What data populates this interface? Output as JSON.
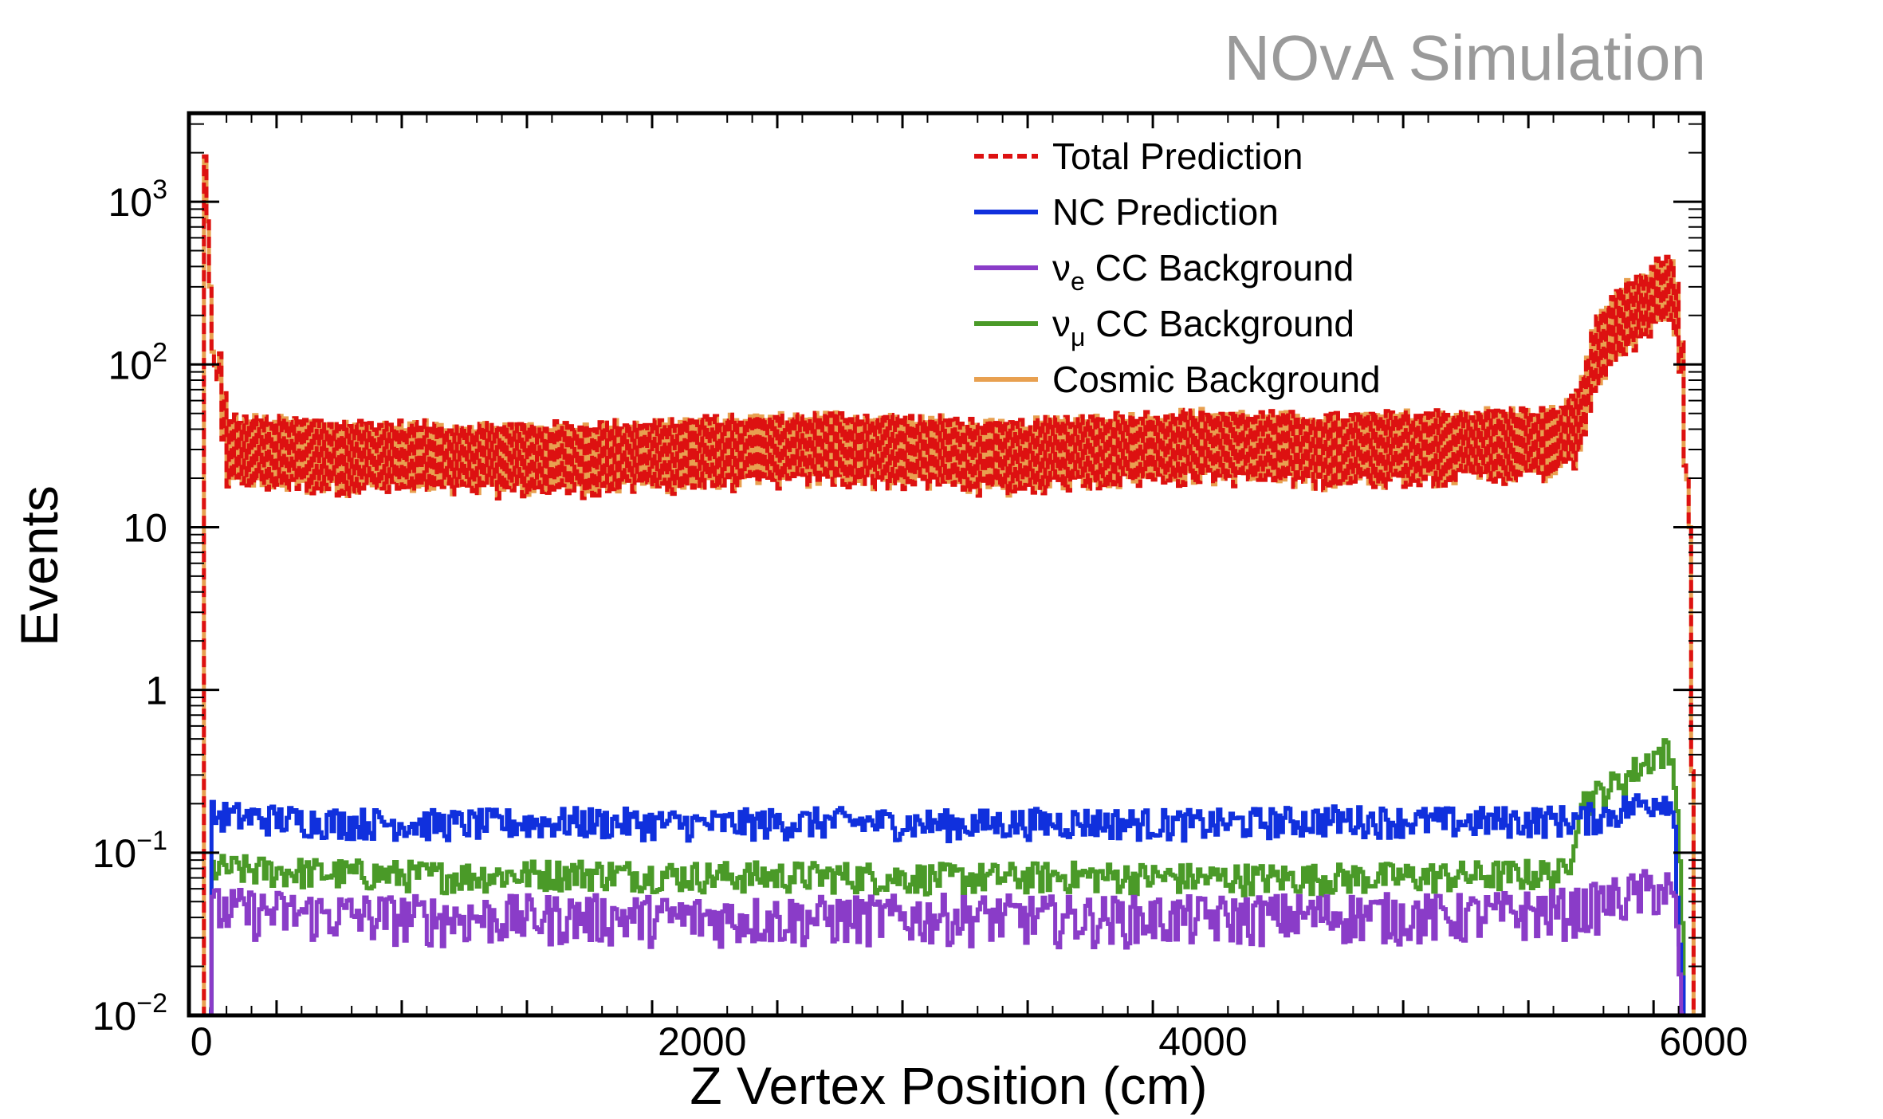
{
  "watermark": "NOvA Simulation",
  "chart_data": {
    "type": "line",
    "xlabel": "Z Vertex Position (cm)",
    "ylabel": "Events",
    "xlim": [
      -50,
      6000
    ],
    "ylim": [
      0.01,
      3500
    ],
    "yscale": "log",
    "grid": false,
    "legend_position": "top-center",
    "x_ticks": [
      {
        "value": 0,
        "label": "0"
      },
      {
        "value": 2000,
        "label": "2000"
      },
      {
        "value": 4000,
        "label": "4000"
      },
      {
        "value": 6000,
        "label": "6000"
      }
    ],
    "y_ticks": [
      {
        "value": 0.01,
        "base": "10",
        "exp": "−2"
      },
      {
        "value": 0.1,
        "base": "10",
        "exp": "−1"
      },
      {
        "value": 1,
        "base": "1",
        "exp": ""
      },
      {
        "value": 10,
        "base": "10",
        "exp": ""
      },
      {
        "value": 100,
        "base": "10",
        "exp": "2"
      },
      {
        "value": 1000,
        "base": "10",
        "exp": "3"
      }
    ],
    "series": [
      {
        "id": "cosmic",
        "name": "Cosmic Background",
        "color": "#e8a050",
        "dashed": false,
        "points": [
          [
            0,
            0.01
          ],
          [
            10,
            1900
          ],
          [
            40,
            120
          ],
          [
            80,
            55
          ],
          [
            100,
            28
          ],
          [
            500,
            26
          ],
          [
            1000,
            25
          ],
          [
            1500,
            25
          ],
          [
            2000,
            27
          ],
          [
            2500,
            29
          ],
          [
            3000,
            27
          ],
          [
            3200,
            25
          ],
          [
            3500,
            28
          ],
          [
            4000,
            30
          ],
          [
            4500,
            28
          ],
          [
            5000,
            30
          ],
          [
            5400,
            31
          ],
          [
            5500,
            40
          ],
          [
            5550,
            100
          ],
          [
            5650,
            170
          ],
          [
            5750,
            210
          ],
          [
            5820,
            260
          ],
          [
            5860,
            280
          ],
          [
            5900,
            150
          ],
          [
            5940,
            10
          ],
          [
            5960,
            0.01
          ]
        ]
      },
      {
        "id": "total",
        "name": "Total Prediction",
        "color": "#dd1111",
        "dashed": true,
        "points": [
          [
            0,
            0.01
          ],
          [
            10,
            1900
          ],
          [
            40,
            120
          ],
          [
            80,
            55
          ],
          [
            100,
            28
          ],
          [
            500,
            26
          ],
          [
            1000,
            25
          ],
          [
            1500,
            25
          ],
          [
            2000,
            27
          ],
          [
            2500,
            29
          ],
          [
            3000,
            27
          ],
          [
            3200,
            25
          ],
          [
            3500,
            28
          ],
          [
            4000,
            30
          ],
          [
            4500,
            28
          ],
          [
            5000,
            30
          ],
          [
            5400,
            31
          ],
          [
            5500,
            40
          ],
          [
            5550,
            100
          ],
          [
            5650,
            170
          ],
          [
            5750,
            210
          ],
          [
            5820,
            260
          ],
          [
            5860,
            280
          ],
          [
            5900,
            150
          ],
          [
            5940,
            10
          ],
          [
            5960,
            0.01
          ]
        ]
      },
      {
        "id": "numu",
        "name": "ν μ CC Background",
        "color": "#4a9a28",
        "dashed": false,
        "points": [
          [
            30,
            0.01
          ],
          [
            40,
            0.08
          ],
          [
            500,
            0.075
          ],
          [
            1000,
            0.072
          ],
          [
            1500,
            0.075
          ],
          [
            2000,
            0.072
          ],
          [
            2500,
            0.072
          ],
          [
            3000,
            0.07
          ],
          [
            3500,
            0.072
          ],
          [
            4000,
            0.07
          ],
          [
            4500,
            0.07
          ],
          [
            5000,
            0.072
          ],
          [
            5450,
            0.075
          ],
          [
            5500,
            0.2
          ],
          [
            5600,
            0.24
          ],
          [
            5700,
            0.3
          ],
          [
            5800,
            0.4
          ],
          [
            5850,
            0.42
          ],
          [
            5880,
            0.32
          ],
          [
            5900,
            0.1
          ],
          [
            5920,
            0.01
          ]
        ]
      },
      {
        "id": "nc",
        "name": "NC Prediction",
        "color": "#1030dd",
        "dashed": false,
        "points": [
          [
            30,
            0.01
          ],
          [
            40,
            0.17
          ],
          [
            500,
            0.155
          ],
          [
            1000,
            0.15
          ],
          [
            1500,
            0.155
          ],
          [
            2000,
            0.15
          ],
          [
            2500,
            0.155
          ],
          [
            3000,
            0.15
          ],
          [
            3500,
            0.155
          ],
          [
            4000,
            0.15
          ],
          [
            4500,
            0.16
          ],
          [
            5000,
            0.155
          ],
          [
            5500,
            0.16
          ],
          [
            5600,
            0.17
          ],
          [
            5700,
            0.19
          ],
          [
            5800,
            0.21
          ],
          [
            5850,
            0.22
          ],
          [
            5880,
            0.15
          ],
          [
            5900,
            0.03
          ],
          [
            5920,
            0.01
          ]
        ]
      },
      {
        "id": "nue",
        "name": "ν e CC Background",
        "color": "#8a3cc8",
        "dashed": false,
        "points": [
          [
            30,
            0.01
          ],
          [
            40,
            0.045
          ],
          [
            500,
            0.042
          ],
          [
            1000,
            0.04
          ],
          [
            1500,
            0.041
          ],
          [
            2000,
            0.04
          ],
          [
            2500,
            0.04
          ],
          [
            3000,
            0.041
          ],
          [
            3500,
            0.04
          ],
          [
            4000,
            0.04
          ],
          [
            4500,
            0.042
          ],
          [
            5000,
            0.041
          ],
          [
            5500,
            0.045
          ],
          [
            5600,
            0.05
          ],
          [
            5700,
            0.055
          ],
          [
            5800,
            0.06
          ],
          [
            5850,
            0.06
          ],
          [
            5880,
            0.045
          ],
          [
            5900,
            0.02
          ],
          [
            5910,
            0.01
          ]
        ]
      }
    ],
    "legend": [
      {
        "series": "total",
        "label": "Total Prediction",
        "sym": "",
        "sub": "",
        "rest": ""
      },
      {
        "series": "nc",
        "label": "NC Prediction",
        "sym": "",
        "sub": "",
        "rest": ""
      },
      {
        "series": "nue",
        "label": "",
        "sym": "ν",
        "sub": "e",
        "rest": " CC Background"
      },
      {
        "series": "numu",
        "label": "",
        "sym": "ν",
        "sub": "μ",
        "rest": " CC Background"
      },
      {
        "series": "cosmic",
        "label": "Cosmic Background",
        "sym": "",
        "sub": "",
        "rest": ""
      }
    ]
  }
}
